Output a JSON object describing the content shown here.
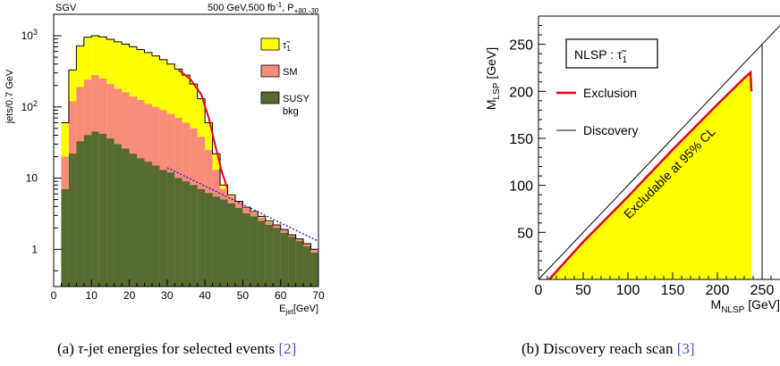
{
  "figure_a": {
    "caption_prefix": "(a) ",
    "caption_tau": "τ",
    "caption_text": "-jet energies for selected events ",
    "caption_cite": "[2]",
    "chart_data": {
      "type": "bar",
      "scale_y": "log",
      "top_left_label": "SGV",
      "top_right_label": "500 GeV,500 fb",
      "top_right_sup": "-1",
      "top_right_pol": ", P",
      "top_right_pol_sub": "+80,-30",
      "ylabel": "jets/0.7 GeV",
      "xlabel": "E",
      "xlabel_sub": "jet",
      "xlabel_unit": "[GeV]",
      "xlim": [
        0,
        70
      ],
      "ylim": [
        0.3,
        2000
      ],
      "x_ticks": [
        "0",
        "10",
        "20",
        "30",
        "40",
        "50",
        "60",
        "70"
      ],
      "y_ticks": [
        {
          "v": 1000,
          "base": "10",
          "exp": "3"
        },
        {
          "v": 100,
          "base": "10",
          "exp": "2"
        },
        {
          "v": 10,
          "base": "10",
          "exp": ""
        },
        {
          "v": 1,
          "base": "1",
          "exp": ""
        }
      ],
      "legend": [
        {
          "label": "τ̃",
          "sub": "1",
          "color": "#ffff00"
        },
        {
          "label": "SM",
          "sub": "",
          "color": "#f98b79"
        },
        {
          "label": "SUSY",
          "sub": "",
          "label2": "bkg",
          "color": "#556b2f"
        }
      ],
      "colors": {
        "stau": "#ffff00",
        "sm": "#f98b79",
        "susy": "#556b2f",
        "fit": "#e8001c",
        "dashed": "#0000dd"
      },
      "series": [
        {
          "name": "SUSY bkg",
          "x": [
            3,
            5,
            7,
            9,
            11,
            13,
            15,
            17,
            19,
            21,
            23,
            25,
            27,
            29,
            31,
            33,
            35,
            37,
            39,
            41,
            43,
            45,
            47,
            49,
            51,
            53,
            55,
            57,
            59,
            61,
            63,
            65,
            67,
            69
          ],
          "values": [
            7,
            22,
            33,
            40,
            45,
            42,
            36,
            30,
            26,
            22,
            19,
            17,
            15,
            13,
            12,
            10,
            9,
            8,
            7,
            6.2,
            5.5,
            5,
            4.4,
            3.8,
            3.2,
            2.9,
            2.5,
            2.2,
            2,
            1.7,
            1.5,
            1.3,
            1.1,
            0.9
          ]
        },
        {
          "name": "SM",
          "x": [
            3,
            5,
            7,
            9,
            11,
            13,
            15,
            17,
            19,
            21,
            23,
            25,
            27,
            29,
            31,
            33,
            35,
            37,
            39,
            41,
            43,
            45,
            47,
            49,
            51,
            53,
            55,
            57,
            59,
            61,
            63,
            65,
            67,
            69
          ],
          "values": [
            20,
            120,
            190,
            240,
            280,
            250,
            210,
            180,
            160,
            140,
            125,
            110,
            100,
            90,
            80,
            70,
            60,
            50,
            38,
            25,
            13,
            7,
            5.5,
            4.6,
            3.8,
            3.3,
            2.8,
            2.4,
            2.2,
            1.9,
            1.6,
            1.4,
            1.2,
            1
          ]
        },
        {
          "name": "τ̃1",
          "x": [
            3,
            5,
            7,
            9,
            11,
            13,
            15,
            17,
            19,
            21,
            23,
            25,
            27,
            29,
            31,
            33,
            35,
            37,
            39,
            41,
            43,
            45,
            47,
            49,
            51,
            53,
            55,
            57,
            59,
            61,
            63,
            65,
            67,
            69
          ],
          "values": [
            60,
            330,
            720,
            950,
            1000,
            960,
            890,
            820,
            760,
            700,
            640,
            580,
            520,
            460,
            400,
            340,
            280,
            210,
            130,
            60,
            22,
            8,
            5.8,
            4.7,
            3.9,
            3.4,
            2.9,
            2.5,
            2.2,
            1.9,
            1.6,
            1.4,
            1.2,
            1
          ]
        }
      ],
      "fit_line": {
        "x": [
          33,
          36,
          39,
          41,
          43,
          44.5,
          46
        ],
        "y": [
          330,
          250,
          150,
          70,
          25,
          12,
          7
        ]
      },
      "dashed_line": {
        "x": [
          30,
          70
        ],
        "y": [
          14,
          1.3
        ]
      }
    }
  },
  "figure_b": {
    "caption_prefix": "(b) Discovery reach scan ",
    "caption_cite": "[3]",
    "chart_data": {
      "type": "area",
      "box_label": "NLSP : τ̃",
      "box_label_sub": "1",
      "ylabel": "M",
      "ylabel_sub": "LSP",
      "ylabel_unit": " [GeV]",
      "xlabel": "M",
      "xlabel_sub": "NLSP",
      "xlabel_unit": " [GeV]",
      "xlim": [
        0,
        270
      ],
      "ylim": [
        0,
        280
      ],
      "x_ticks": [
        "0",
        "50",
        "100",
        "150",
        "200",
        "250"
      ],
      "y_ticks": [
        "50",
        "100",
        "150",
        "200",
        "250"
      ],
      "legend": [
        {
          "label": "Exclusion",
          "color": "#e8001c"
        },
        {
          "label": "Discovery",
          "color": "#000000"
        }
      ],
      "region_label": "Excludable at 95% CL",
      "colors": {
        "fill": "#ffff00",
        "exclusion": "#e8001c",
        "discovery": "#000000"
      },
      "exclusion_contour": {
        "x": [
          12,
          50,
          100,
          150,
          200,
          230,
          237,
          238,
          238,
          12
        ],
        "y": [
          0,
          40,
          88,
          138,
          186,
          214,
          220,
          200,
          0,
          0
        ]
      },
      "discovery_line_x": 250
    }
  }
}
